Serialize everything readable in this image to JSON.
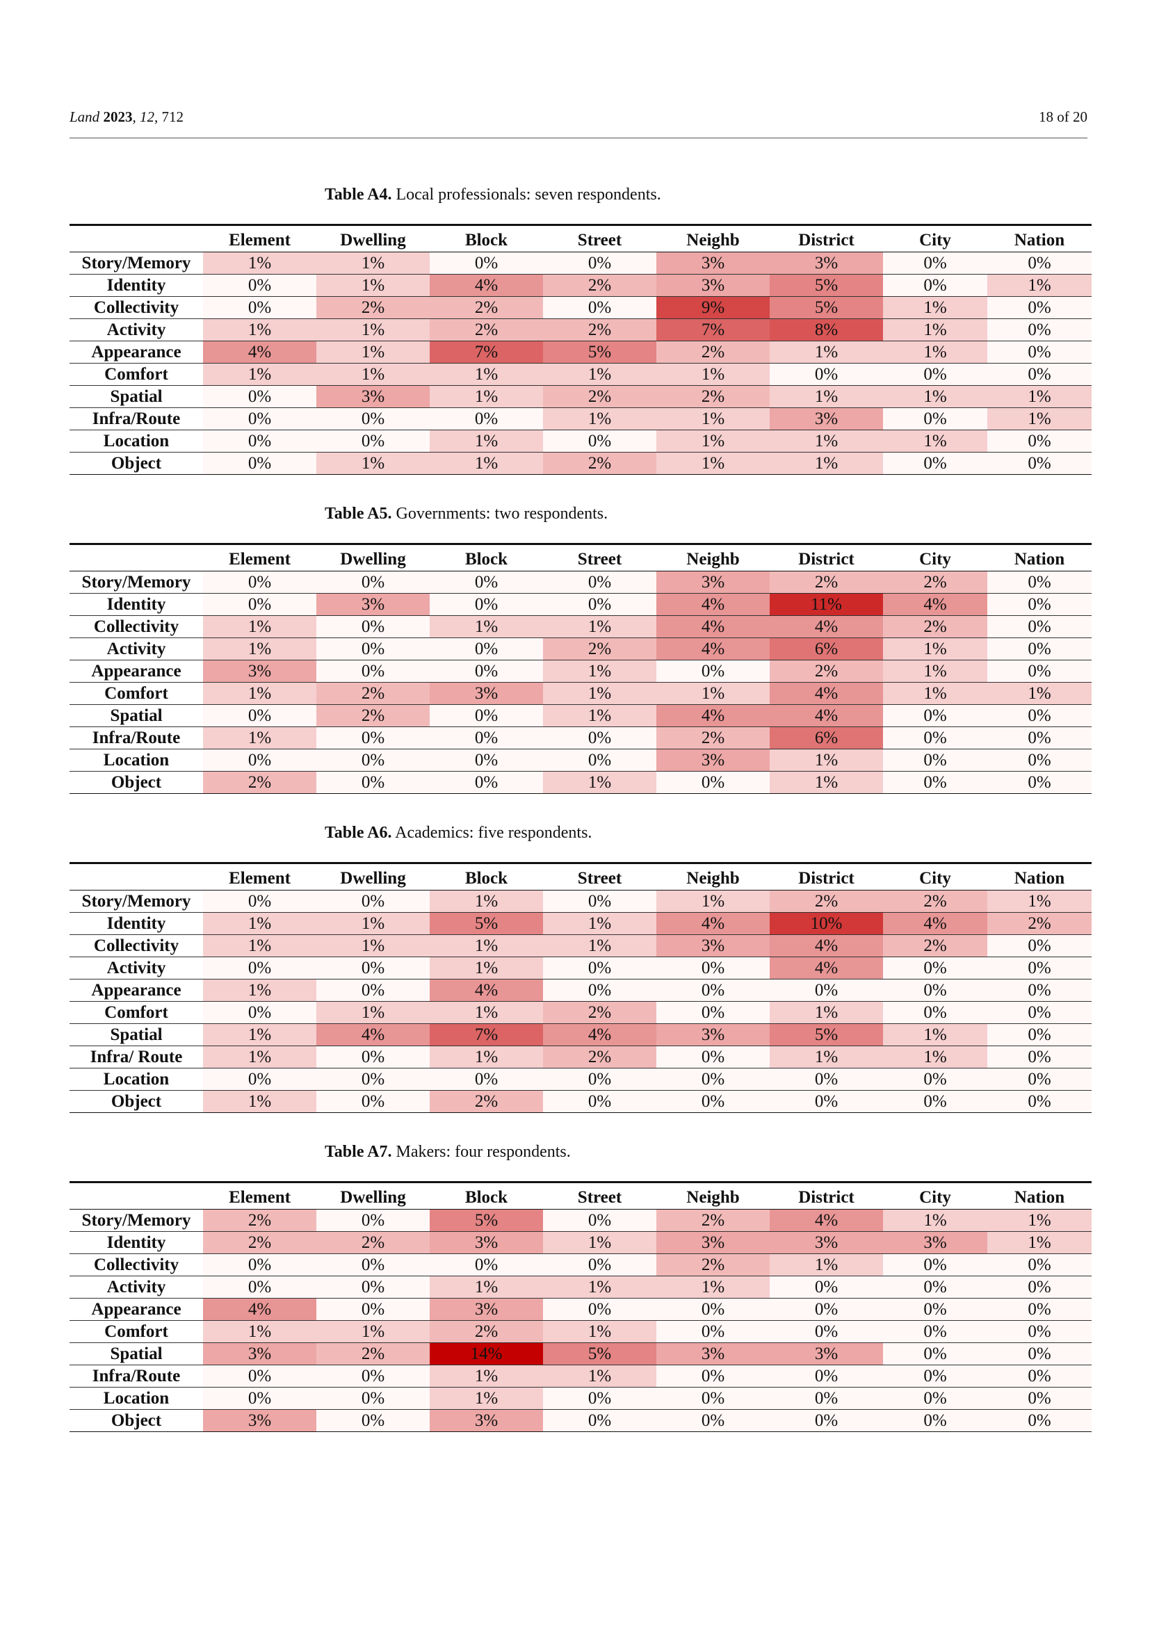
{
  "header": {
    "journal": "Land",
    "year": "2023",
    "volume": "12",
    "article": "712",
    "page": "18 of 20"
  },
  "columns": [
    "Element",
    "Dwelling",
    "Block",
    "Street",
    "Neighb",
    "District",
    "City",
    "Nation"
  ],
  "tables": [
    {
      "label": "Table A4.",
      "caption": "Local professionals: seven respondents.",
      "rows": [
        {
          "label": "Story/Memory",
          "values": [
            1,
            1,
            0,
            0,
            3,
            3,
            0,
            0
          ]
        },
        {
          "label": "Identity",
          "values": [
            0,
            1,
            4,
            2,
            3,
            5,
            0,
            1
          ]
        },
        {
          "label": "Collectivity",
          "values": [
            0,
            2,
            2,
            0,
            9,
            5,
            1,
            0
          ]
        },
        {
          "label": "Activity",
          "values": [
            1,
            1,
            2,
            2,
            7,
            8,
            1,
            0
          ]
        },
        {
          "label": "Appearance",
          "values": [
            4,
            1,
            7,
            5,
            2,
            1,
            1,
            0
          ]
        },
        {
          "label": "Comfort",
          "values": [
            1,
            1,
            1,
            1,
            1,
            0,
            0,
            0
          ]
        },
        {
          "label": "Spatial",
          "values": [
            0,
            3,
            1,
            2,
            2,
            1,
            1,
            1
          ]
        },
        {
          "label": "Infra/Route",
          "values": [
            0,
            0,
            0,
            1,
            1,
            3,
            0,
            1
          ]
        },
        {
          "label": "Location",
          "values": [
            0,
            0,
            1,
            0,
            1,
            1,
            1,
            0
          ]
        },
        {
          "label": "Object",
          "values": [
            0,
            1,
            1,
            2,
            1,
            1,
            0,
            0
          ]
        }
      ]
    },
    {
      "label": "Table A5.",
      "caption": "Governments: two respondents.",
      "rows": [
        {
          "label": "Story/Memory",
          "values": [
            0,
            0,
            0,
            0,
            3,
            2,
            2,
            0
          ]
        },
        {
          "label": "Identity",
          "values": [
            0,
            3,
            0,
            0,
            4,
            11,
            4,
            0
          ]
        },
        {
          "label": "Collectivity",
          "values": [
            1,
            0,
            1,
            1,
            4,
            4,
            2,
            0
          ]
        },
        {
          "label": "Activity",
          "values": [
            1,
            0,
            0,
            2,
            4,
            6,
            1,
            0
          ]
        },
        {
          "label": "Appearance",
          "values": [
            3,
            0,
            0,
            1,
            0,
            2,
            1,
            0
          ]
        },
        {
          "label": "Comfort",
          "values": [
            1,
            2,
            3,
            1,
            1,
            4,
            1,
            1
          ]
        },
        {
          "label": "Spatial",
          "values": [
            0,
            2,
            0,
            1,
            4,
            4,
            0,
            0
          ]
        },
        {
          "label": "Infra/Route",
          "values": [
            1,
            0,
            0,
            0,
            2,
            6,
            0,
            0
          ]
        },
        {
          "label": "Location",
          "values": [
            0,
            0,
            0,
            0,
            3,
            1,
            0,
            0
          ]
        },
        {
          "label": "Object",
          "values": [
            2,
            0,
            0,
            1,
            0,
            1,
            0,
            0
          ]
        }
      ]
    },
    {
      "label": "Table A6.",
      "caption": "Academics: five respondents.",
      "rows": [
        {
          "label": "Story/Memory",
          "values": [
            0,
            0,
            1,
            0,
            1,
            2,
            2,
            1
          ]
        },
        {
          "label": "Identity",
          "values": [
            1,
            1,
            5,
            1,
            4,
            10,
            4,
            2
          ]
        },
        {
          "label": "Collectivity",
          "values": [
            1,
            1,
            1,
            1,
            3,
            4,
            2,
            0
          ]
        },
        {
          "label": "Activity",
          "values": [
            0,
            0,
            1,
            0,
            0,
            4,
            0,
            0
          ]
        },
        {
          "label": "Appearance",
          "values": [
            1,
            0,
            4,
            0,
            0,
            0,
            0,
            0
          ]
        },
        {
          "label": "Comfort",
          "values": [
            0,
            1,
            1,
            2,
            0,
            1,
            0,
            0
          ]
        },
        {
          "label": "Spatial",
          "values": [
            1,
            4,
            7,
            4,
            3,
            5,
            1,
            0
          ]
        },
        {
          "label": "Infra/ Route",
          "values": [
            1,
            0,
            1,
            2,
            0,
            1,
            1,
            0
          ]
        },
        {
          "label": "Location",
          "values": [
            0,
            0,
            0,
            0,
            0,
            0,
            0,
            0
          ]
        },
        {
          "label": "Object",
          "values": [
            1,
            0,
            2,
            0,
            0,
            0,
            0,
            0
          ]
        }
      ]
    },
    {
      "label": "Table A7.",
      "caption": "Makers: four respondents.",
      "rows": [
        {
          "label": "Story/Memory",
          "values": [
            2,
            0,
            5,
            0,
            2,
            4,
            1,
            1
          ]
        },
        {
          "label": "Identity",
          "values": [
            2,
            2,
            3,
            1,
            3,
            3,
            3,
            1
          ]
        },
        {
          "label": "Collectivity",
          "values": [
            0,
            0,
            0,
            0,
            2,
            1,
            0,
            0
          ]
        },
        {
          "label": "Activity",
          "values": [
            0,
            0,
            1,
            1,
            1,
            0,
            0,
            0
          ]
        },
        {
          "label": "Appearance",
          "values": [
            4,
            0,
            3,
            0,
            0,
            0,
            0,
            0
          ]
        },
        {
          "label": "Comfort",
          "values": [
            1,
            1,
            2,
            1,
            0,
            0,
            0,
            0
          ]
        },
        {
          "label": "Spatial",
          "values": [
            3,
            2,
            14,
            5,
            3,
            3,
            0,
            0
          ]
        },
        {
          "label": "Infra/Route",
          "values": [
            0,
            0,
            1,
            1,
            0,
            0,
            0,
            0
          ]
        },
        {
          "label": "Location",
          "values": [
            0,
            0,
            1,
            0,
            0,
            0,
            0,
            0
          ]
        },
        {
          "label": "Object",
          "values": [
            3,
            0,
            3,
            0,
            0,
            0,
            0,
            0
          ]
        }
      ]
    }
  ]
}
